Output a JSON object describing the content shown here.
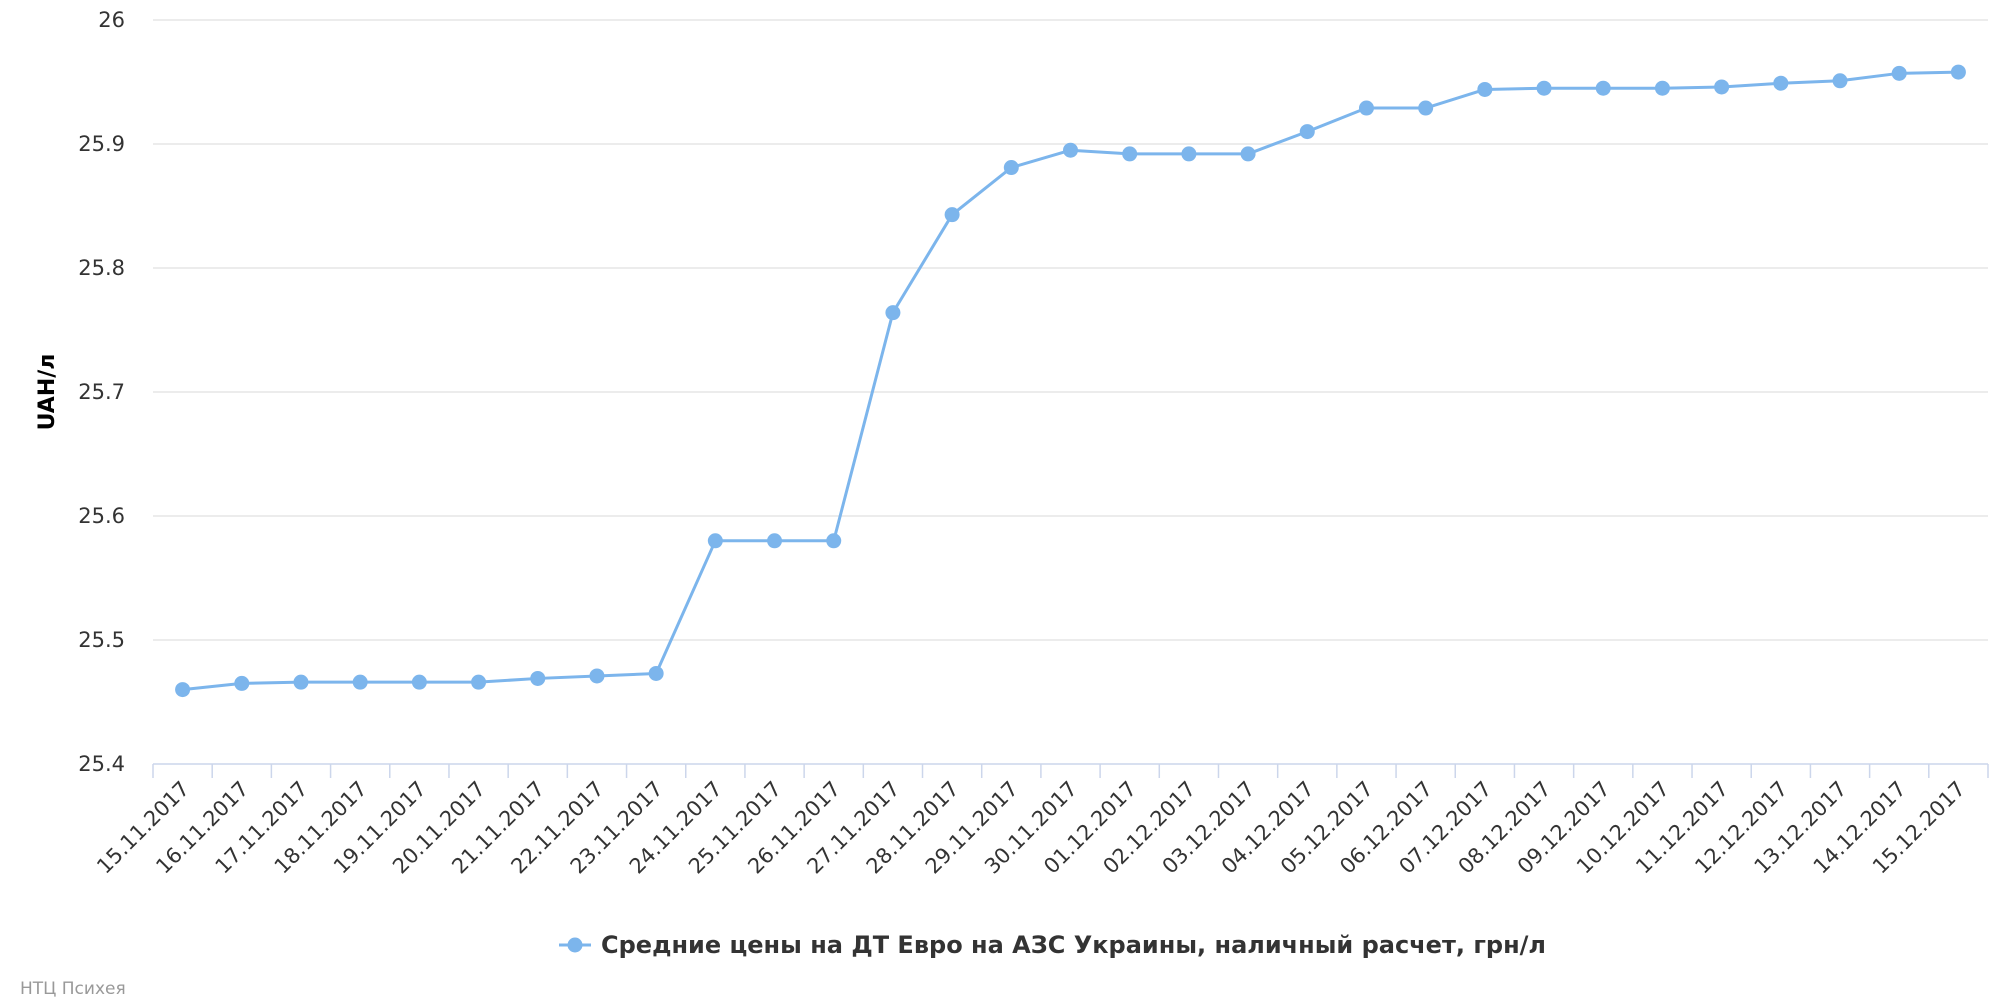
{
  "credit": "НТЦ Психея",
  "colors": {
    "series": "#7cb5ec",
    "grid": "#e6e6e6",
    "axis": "#ccd6eb",
    "text": "#333333"
  },
  "chart_data": {
    "type": "line",
    "title": "",
    "xlabel": "",
    "ylabel": "UAH/л",
    "ylim": [
      25.4,
      26
    ],
    "yticks": [
      "25.4",
      "25.5",
      "25.6",
      "25.7",
      "25.8",
      "25.9",
      "26"
    ],
    "grid": true,
    "legend_position": "bottom-center",
    "categories": [
      "15.11.2017",
      "16.11.2017",
      "17.11.2017",
      "18.11.2017",
      "19.11.2017",
      "20.11.2017",
      "21.11.2017",
      "22.11.2017",
      "23.11.2017",
      "24.11.2017",
      "25.11.2017",
      "26.11.2017",
      "27.11.2017",
      "28.11.2017",
      "29.11.2017",
      "30.11.2017",
      "01.12.2017",
      "02.12.2017",
      "03.12.2017",
      "04.12.2017",
      "05.12.2017",
      "06.12.2017",
      "07.12.2017",
      "08.12.2017",
      "09.12.2017",
      "10.12.2017",
      "11.12.2017",
      "12.12.2017",
      "13.12.2017",
      "14.12.2017",
      "15.12.2017"
    ],
    "series": [
      {
        "name": "Средние цены на ДТ Евро на АЗС Украины, наличный расчет, грн/л",
        "color": "#7cb5ec",
        "values": [
          25.46,
          25.465,
          25.466,
          25.466,
          25.466,
          25.466,
          25.469,
          25.471,
          25.473,
          25.58,
          25.58,
          25.58,
          25.764,
          25.843,
          25.881,
          25.895,
          25.892,
          25.892,
          25.892,
          25.91,
          25.929,
          25.929,
          25.944,
          25.945,
          25.945,
          25.945,
          25.946,
          25.949,
          25.951,
          25.957,
          25.958
        ]
      }
    ]
  }
}
